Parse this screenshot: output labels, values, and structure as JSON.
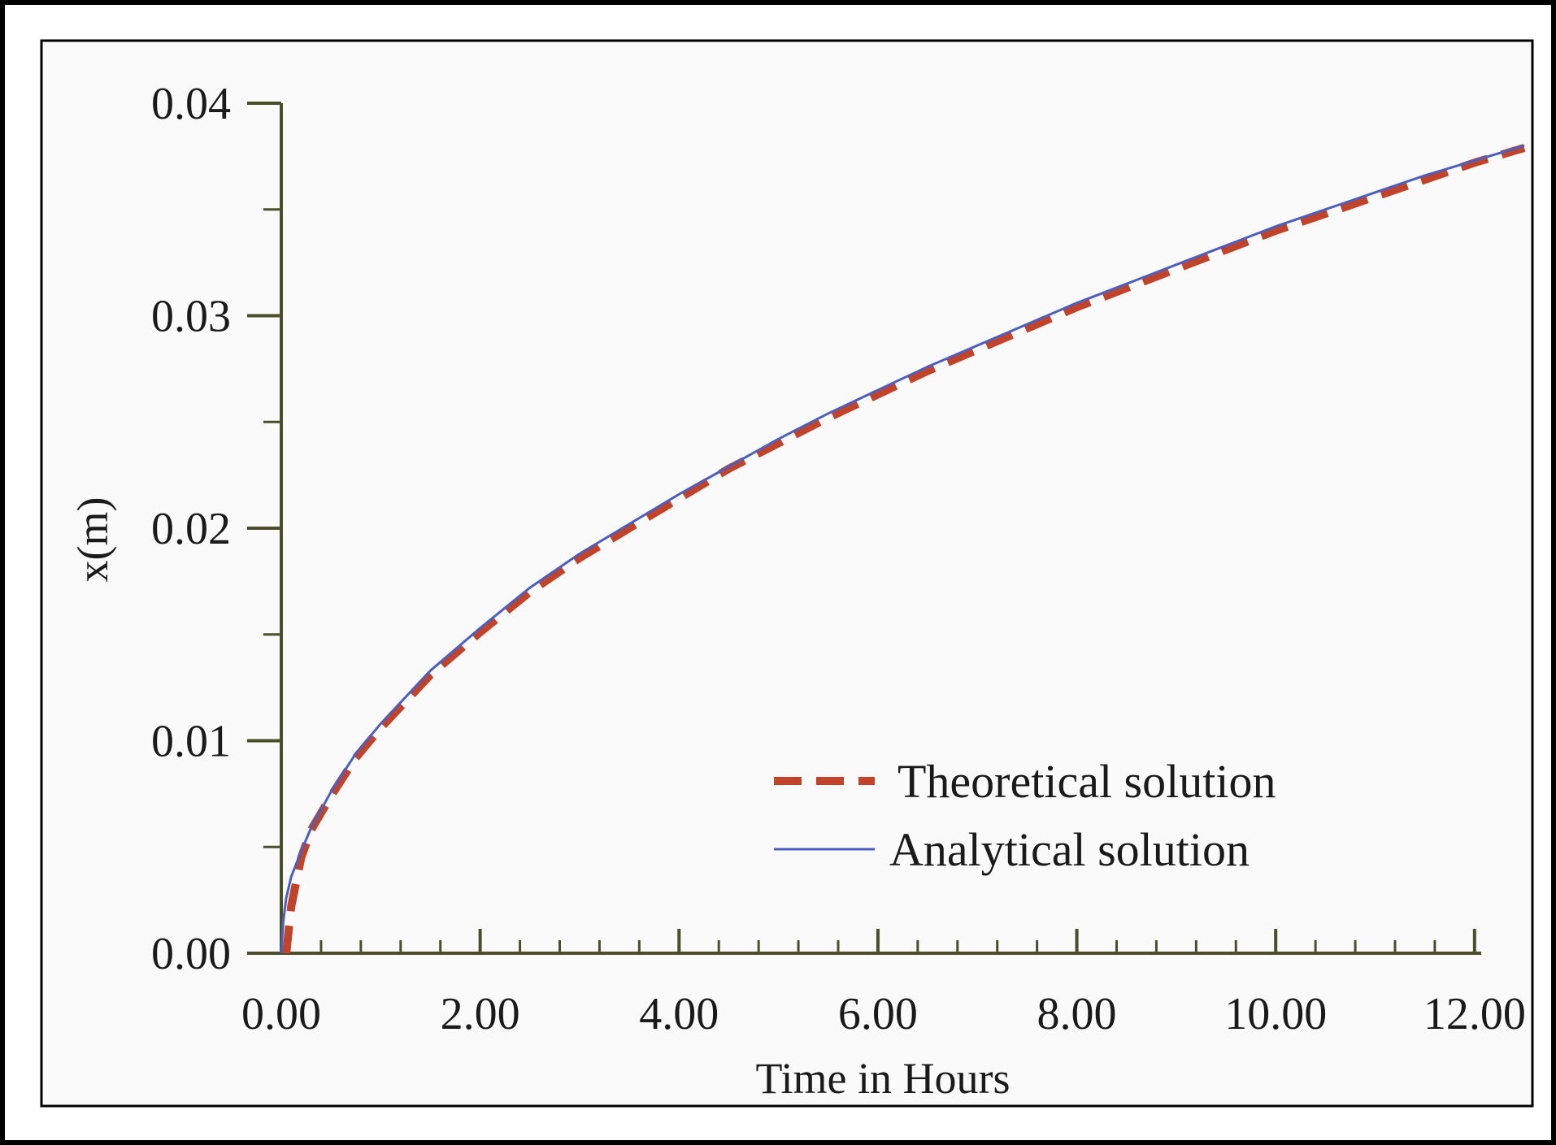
{
  "chart_data": {
    "type": "line",
    "title": "",
    "xlabel": "Time in Hours",
    "ylabel": "x(m)",
    "xlim": [
      0,
      12.5
    ],
    "ylim": [
      0,
      0.04
    ],
    "x_ticks": [
      "0.00",
      "2.00",
      "4.00",
      "6.00",
      "8.00",
      "10.00",
      "12.00"
    ],
    "x_tick_values": [
      0,
      2,
      4,
      6,
      8,
      10,
      12
    ],
    "x_minor_step": 0.4,
    "y_ticks": [
      "0.00",
      "0.01",
      "0.02",
      "0.03",
      "0.04"
    ],
    "y_tick_values": [
      0,
      0.01,
      0.02,
      0.03,
      0.04
    ],
    "y_minor_step": 0.005,
    "grid": false,
    "legend_position": "bottom-right",
    "series": [
      {
        "name": "Theoretical solution",
        "style": "dashed",
        "color": "#c1442a",
        "x": [
          0.05,
          0.1,
          0.2,
          0.3,
          0.5,
          0.75,
          1,
          1.5,
          2,
          2.5,
          3,
          3.5,
          4,
          4.5,
          5,
          5.5,
          6,
          6.5,
          7,
          7.5,
          8,
          8.5,
          9,
          9.5,
          10,
          10.5,
          11,
          11.5,
          12,
          12.5
        ],
        "y": [
          0.0,
          0.0022,
          0.0045,
          0.0058,
          0.0074,
          0.0092,
          0.0106,
          0.0131,
          0.0151,
          0.017,
          0.0186,
          0.02,
          0.0214,
          0.0228,
          0.024,
          0.0252,
          0.0263,
          0.0274,
          0.0284,
          0.0294,
          0.0304,
          0.0313,
          0.0322,
          0.0331,
          0.034,
          0.0348,
          0.0356,
          0.0364,
          0.0372,
          0.0379
        ]
      },
      {
        "name": "Analytical solution",
        "style": "solid",
        "color": "#4a5fc1",
        "x": [
          0.0,
          0.02,
          0.05,
          0.1,
          0.2,
          0.3,
          0.5,
          0.75,
          1,
          1.5,
          2,
          2.5,
          3,
          3.5,
          4,
          4.5,
          5,
          5.5,
          6,
          6.5,
          7,
          7.5,
          8,
          8.5,
          9,
          9.5,
          10,
          10.5,
          11,
          11.5,
          12,
          12.5
        ],
        "y": [
          0.0,
          0.0015,
          0.0026,
          0.0036,
          0.0048,
          0.0059,
          0.0076,
          0.0094,
          0.0108,
          0.0133,
          0.0153,
          0.0172,
          0.0188,
          0.0202,
          0.0216,
          0.0229,
          0.0242,
          0.0254,
          0.0265,
          0.0276,
          0.0286,
          0.0296,
          0.0306,
          0.0315,
          0.0324,
          0.0333,
          0.0342,
          0.035,
          0.0358,
          0.0366,
          0.0373,
          0.038
        ]
      }
    ]
  }
}
